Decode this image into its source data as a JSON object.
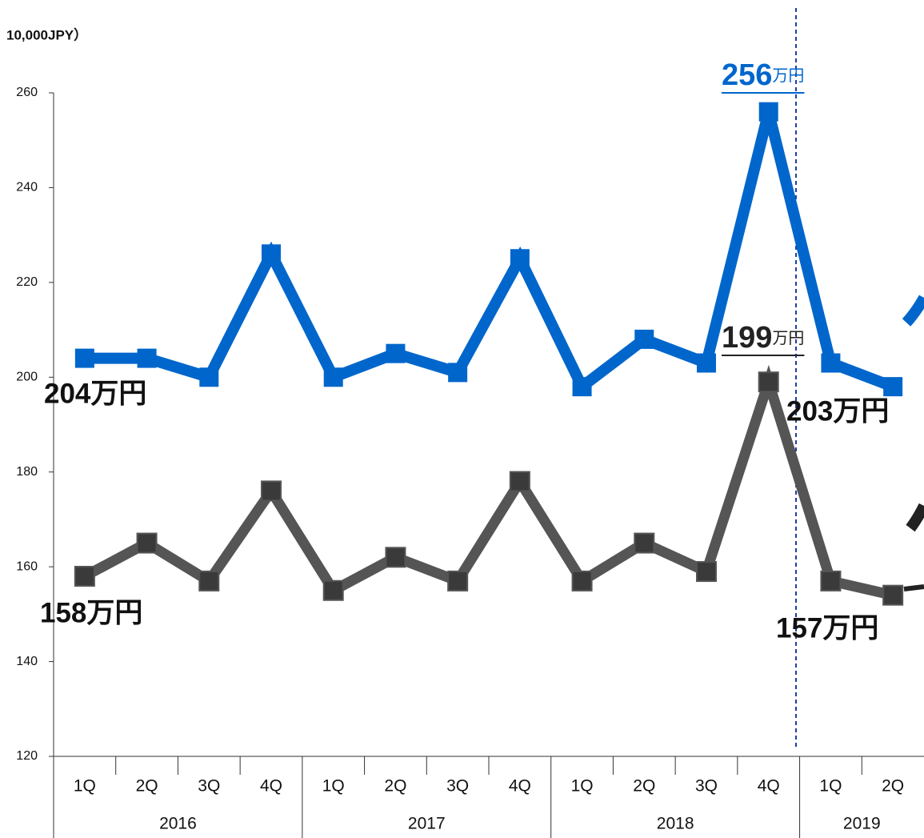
{
  "chart_data": {
    "type": "line",
    "axis_label": "10,000JPY）",
    "categories": [
      "1Q",
      "2Q",
      "3Q",
      "4Q",
      "1Q",
      "2Q",
      "3Q",
      "4Q",
      "1Q",
      "2Q",
      "3Q",
      "4Q",
      "1Q",
      "2Q"
    ],
    "year_groups": [
      {
        "label": "2016",
        "count": 4
      },
      {
        "label": "2017",
        "count": 4
      },
      {
        "label": "2018",
        "count": 4
      },
      {
        "label": "2019",
        "count": 2
      }
    ],
    "series": [
      {
        "color": "#0066cc",
        "values": [
          204,
          204,
          200,
          226,
          200,
          205,
          201,
          225,
          198,
          208,
          203,
          256,
          203,
          198
        ]
      },
      {
        "color": "#555555",
        "values": [
          158,
          165,
          157,
          176,
          155,
          162,
          157,
          178,
          157,
          165,
          159,
          199,
          157,
          154
        ]
      }
    ],
    "annotations": [
      {
        "text": "204万円",
        "color": "#0066cc"
      },
      {
        "text": "158万円",
        "color": "#222222"
      },
      {
        "number": "256",
        "unit": "万円",
        "color": "#0066cc"
      },
      {
        "number": "199",
        "unit": "万円",
        "color": "#222222"
      },
      {
        "text": "203万円",
        "color": "#0066cc"
      },
      {
        "text": "157万円",
        "color": "#222222"
      }
    ],
    "ylim": [
      120,
      260
    ],
    "yticks": [
      120,
      140,
      160,
      180,
      200,
      220,
      240,
      260
    ]
  }
}
